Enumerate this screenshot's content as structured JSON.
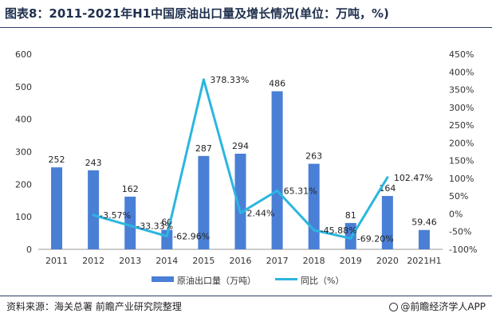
{
  "header": {
    "title": "图表8：2011-2021年H1中国原油出口量及增长情况(单位：万吨，%)"
  },
  "footer": {
    "source": "资料来源：海关总署 前瞻产业研究院整理",
    "brand": "@前瞻经济学人APP"
  },
  "colors": {
    "bar": "#4a7fd6",
    "line": "#2bb6e0",
    "title": "#1f2f4d",
    "axis": "#999999"
  },
  "chart_data": {
    "type": "bar",
    "categories": [
      "2011",
      "2012",
      "2013",
      "2014",
      "2015",
      "2016",
      "2017",
      "2018",
      "2019",
      "2020",
      "2021H1"
    ],
    "series": [
      {
        "name": "原油出口量（万吨）",
        "type": "bar",
        "axis": "left",
        "values": [
          252,
          243,
          162,
          60,
          287,
          294,
          486,
          263,
          81,
          164,
          59.46
        ],
        "labels": [
          "252",
          "243",
          "162",
          "60",
          "287",
          "294",
          "486",
          "263",
          "81",
          "164",
          "59.46"
        ]
      },
      {
        "name": "同比（%）",
        "type": "line",
        "axis": "right",
        "values": [
          null,
          -3.57,
          -33.33,
          -62.96,
          378.33,
          2.44,
          65.31,
          -45.88,
          -69.2,
          102.47,
          null
        ],
        "labels": [
          "",
          "-3.57%",
          "-33.33%",
          "-62.96%",
          "378.33%",
          "2.44%",
          "65.31%",
          "-45.88%",
          "-69.20%",
          "102.47%",
          ""
        ]
      }
    ],
    "y_left": {
      "min": 0,
      "max": 600,
      "ticks": [
        0,
        100,
        200,
        300,
        400,
        500,
        600
      ],
      "tick_labels": [
        "0",
        "100",
        "200",
        "300",
        "400",
        "500",
        "600"
      ]
    },
    "y_right": {
      "min": -100,
      "max": 450,
      "ticks": [
        -100,
        -50,
        0,
        50,
        100,
        150,
        200,
        250,
        300,
        350,
        400,
        450
      ],
      "tick_labels": [
        "-100%",
        "-50%",
        "0%",
        "50%",
        "100%",
        "150%",
        "200%",
        "250%",
        "300%",
        "350%",
        "400%",
        "450%"
      ]
    },
    "grid": false,
    "legend_position": "bottom"
  }
}
